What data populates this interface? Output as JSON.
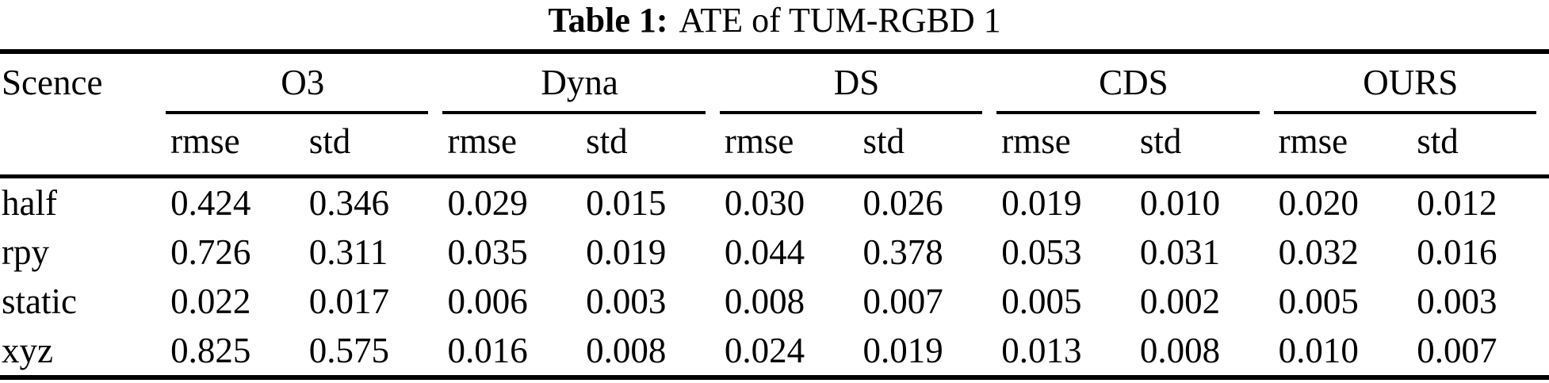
{
  "caption": {
    "label": "Table 1:",
    "title": "ATE of TUM-RGBD 1"
  },
  "table": {
    "corner_header": "Scence",
    "groups": [
      "O3",
      "Dyna",
      "DS",
      "CDS",
      "OURS"
    ],
    "metric_headers": [
      "rmse",
      "std"
    ],
    "rows": [
      {
        "scene": "half",
        "values": [
          "0.424",
          "0.346",
          "0.029",
          "0.015",
          "0.030",
          "0.026",
          "0.019",
          "0.010",
          "0.020",
          "0.012"
        ]
      },
      {
        "scene": "rpy",
        "values": [
          "0.726",
          "0.311",
          "0.035",
          "0.019",
          "0.044",
          "0.378",
          "0.053",
          "0.031",
          "0.032",
          "0.016"
        ]
      },
      {
        "scene": "static",
        "values": [
          "0.022",
          "0.017",
          "0.006",
          "0.003",
          "0.008",
          "0.007",
          "0.005",
          "0.002",
          "0.005",
          "0.003"
        ]
      },
      {
        "scene": "xyz",
        "values": [
          "0.825",
          "0.575",
          "0.016",
          "0.008",
          "0.024",
          "0.019",
          "0.013",
          "0.008",
          "0.010",
          "0.007"
        ]
      }
    ]
  },
  "colors": {
    "text": "#000000",
    "background": "#ffffff",
    "rule": "#000000"
  }
}
